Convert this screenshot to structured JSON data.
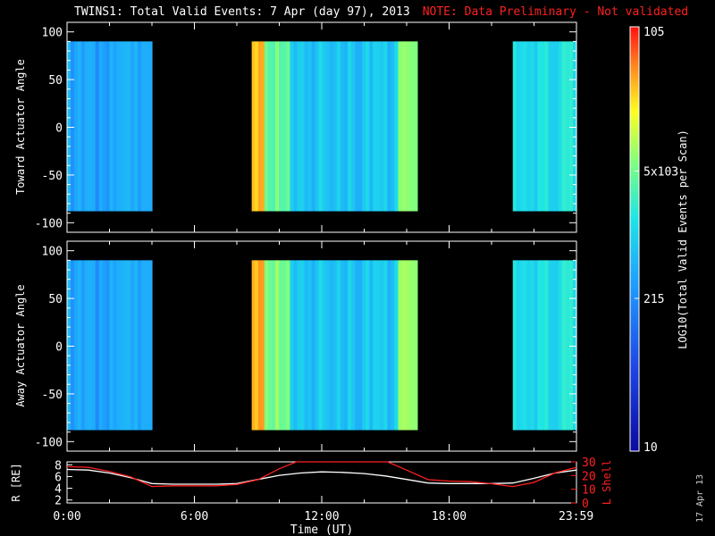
{
  "header": {
    "title": "TWINS1: Total Valid Events:  7 Apr (day  97), 2013",
    "note": "NOTE: Data Preliminary - Not validated"
  },
  "side_date": "17 Apr 13",
  "colors": {
    "background": "#000000",
    "axes": "#ffffff",
    "r_line": "#ffffff",
    "lshell_line": "#ff2020",
    "colormap": [
      "#0a0aa0",
      "#1e46e6",
      "#1ea0ff",
      "#1ee6e6",
      "#7fff7f",
      "#ffff20",
      "#ff9020",
      "#ff1010"
    ]
  },
  "chart_data": [
    {
      "type": "heatmap",
      "name": "toward",
      "title": "",
      "ylabel": "Toward Actuator Angle",
      "xlabel": "",
      "xlim": [
        0,
        24
      ],
      "ylim": [
        -110,
        110
      ],
      "yticks": [
        100,
        50,
        0,
        -50,
        -100
      ],
      "data_ylim": [
        -88,
        90
      ],
      "segments": [
        {
          "start": 0.0,
          "end": 4.0,
          "level": 0.3
        },
        {
          "start": 8.7,
          "end": 9.3,
          "level": 0.8
        },
        {
          "start": 9.3,
          "end": 10.5,
          "level": 0.55
        },
        {
          "start": 10.5,
          "end": 15.6,
          "level": 0.36
        },
        {
          "start": 15.6,
          "end": 16.5,
          "level": 0.58
        },
        {
          "start": 21.0,
          "end": 24.0,
          "level": 0.42
        }
      ]
    },
    {
      "type": "heatmap",
      "name": "away",
      "title": "",
      "ylabel": "Away Actuator Angle",
      "xlabel": "",
      "xlim": [
        0,
        24
      ],
      "ylim": [
        -110,
        110
      ],
      "yticks": [
        100,
        50,
        0,
        -50,
        -100
      ],
      "data_ylim": [
        -88,
        90
      ],
      "segments": [
        {
          "start": 0.0,
          "end": 4.0,
          "level": 0.3
        },
        {
          "start": 8.7,
          "end": 9.3,
          "level": 0.82
        },
        {
          "start": 9.3,
          "end": 10.5,
          "level": 0.58
        },
        {
          "start": 10.5,
          "end": 15.6,
          "level": 0.36
        },
        {
          "start": 15.6,
          "end": 16.5,
          "level": 0.6
        },
        {
          "start": 21.0,
          "end": 24.0,
          "level": 0.42
        }
      ]
    },
    {
      "type": "line",
      "name": "orbit",
      "xlabel": "Time (UT)",
      "ylabel_left": "R [RE]",
      "ylabel_right": "L Shell",
      "xlim": [
        0,
        24
      ],
      "ylim_left": [
        1.5,
        8.5
      ],
      "ylim_right": [
        0,
        30
      ],
      "yticks_left": [
        8,
        6,
        4,
        2
      ],
      "yticks_right": [
        30,
        20,
        10,
        0
      ],
      "xticks": [
        "0:00",
        "6:00",
        "12:00",
        "18:00",
        "23:59"
      ],
      "xtick_values": [
        0,
        6,
        12,
        18,
        23.983
      ],
      "series": [
        {
          "name": "R",
          "axis": "left",
          "x": [
            0,
            1,
            2,
            3,
            4,
            5,
            6,
            7,
            8,
            9,
            10,
            11,
            12,
            13,
            14,
            15,
            16,
            17,
            18,
            19,
            20,
            21,
            22,
            23,
            24
          ],
          "y": [
            7.2,
            7.1,
            6.6,
            5.8,
            4.8,
            4.7,
            4.7,
            4.7,
            4.8,
            5.5,
            6.2,
            6.6,
            6.8,
            6.7,
            6.5,
            6.1,
            5.5,
            4.9,
            4.8,
            4.8,
            4.8,
            4.9,
            5.7,
            6.6,
            7.1
          ]
        },
        {
          "name": "L Shell",
          "axis": "right",
          "x": [
            0,
            1,
            2,
            3,
            4,
            5,
            6,
            7,
            8,
            9,
            10,
            10.8,
            15.1,
            16,
            17,
            18,
            19,
            20,
            21,
            22,
            23,
            24
          ],
          "y": [
            26.5,
            26,
            23,
            19,
            12,
            12.5,
            12.5,
            12.5,
            13.5,
            17,
            25,
            30,
            30,
            24,
            17,
            16,
            15.5,
            14,
            12,
            15,
            22,
            26
          ]
        }
      ]
    }
  ],
  "colorbar": {
    "label": "LOG10(Total Valid Events per Scan)",
    "ticks": [
      {
        "text": "10",
        "level": 0.0
      },
      {
        "text": "215",
        "level": 0.36
      },
      {
        "text": "5x103",
        "level": 0.66
      },
      {
        "text": "105",
        "level": 1.0
      }
    ]
  }
}
